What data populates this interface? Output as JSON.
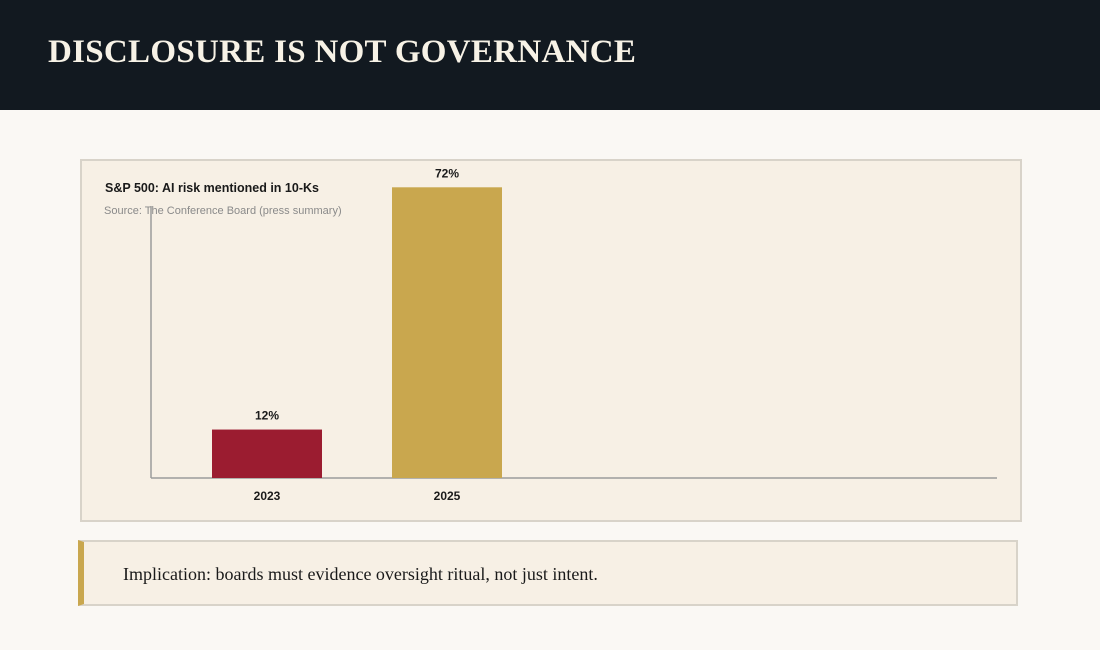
{
  "header": {
    "title": "DISCLOSURE IS NOT GOVERNANCE"
  },
  "chart_data": {
    "type": "bar",
    "title": "S&P 500: AI risk mentioned in 10-Ks",
    "source": "Source: The Conference Board (press summary)",
    "categories": [
      "2023",
      "2025"
    ],
    "values": [
      12,
      72
    ],
    "value_labels": [
      "12%",
      "72%"
    ],
    "bar_colors": [
      "#9b1c30",
      "#c9a74e"
    ],
    "xlabel": "",
    "ylabel": "",
    "ylim": [
      0,
      80
    ],
    "grid": false,
    "legend": "none"
  },
  "implication": {
    "text": "Implication: boards must evidence oversight ritual, not just intent."
  },
  "colors": {
    "header_bg": "#121920",
    "accent_gold": "#c9a74e",
    "accent_red": "#9b1c30",
    "card_bg": "#f7f0e5"
  }
}
